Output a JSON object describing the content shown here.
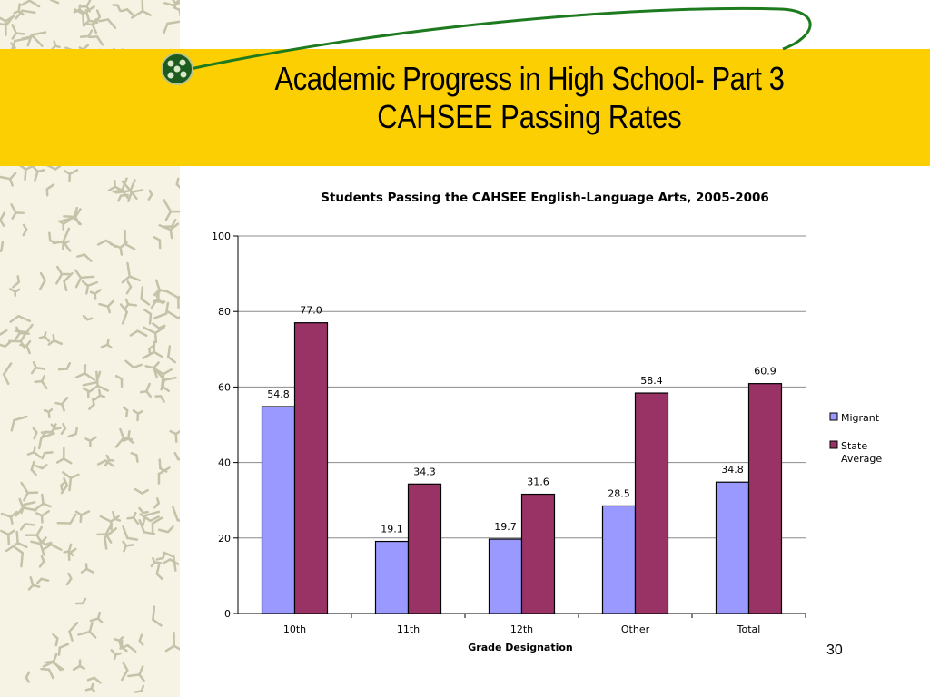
{
  "slide": {
    "title_line1": "Academic Progress in High School- Part 3",
    "title_line2": "CAHSEE Passing Rates",
    "page_number": "30"
  },
  "colors": {
    "banner": "#fccf02",
    "swoosh": "#1e7a1e",
    "migrant": "#9999ff",
    "state_average": "#993366"
  },
  "chart_data": {
    "type": "bar",
    "title": "Students Passing the CAHSEE English-Language Arts, 2005-2006",
    "xlabel": "Grade Designation",
    "ylabel": "",
    "categories": [
      "10th",
      "11th",
      "12th",
      "Other",
      "Total"
    ],
    "series": [
      {
        "name": "Migrant",
        "values": [
          54.8,
          19.1,
          19.7,
          28.5,
          34.8
        ],
        "labels": [
          "54.8",
          "19.1",
          "19.7",
          "28.5",
          "34.8"
        ],
        "color": "#9999ff"
      },
      {
        "name": "State Average",
        "values": [
          77.0,
          34.3,
          31.6,
          58.4,
          60.9
        ],
        "labels": [
          "77.0",
          "34.3",
          "31.6",
          "58.4",
          "60.9"
        ],
        "color": "#993366"
      }
    ],
    "ylim": [
      0,
      100
    ],
    "yticks": [
      "0",
      "20",
      "40",
      "60",
      "80",
      "100"
    ],
    "grid": true,
    "legend_position": "right"
  }
}
